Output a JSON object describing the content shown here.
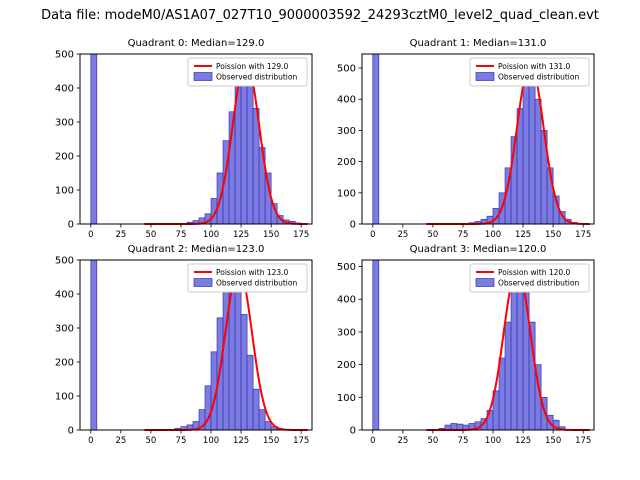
{
  "figure_title": "Data file: modeM0/AS1A07_027T10_9000003592_24293cztM0_level2_quad_clean.evt",
  "colors": {
    "bar_fill": "#7b7be0",
    "bar_edge": "#3535b8",
    "curve": "#ff0000",
    "axis": "#000000",
    "legend_border": "#cccccc",
    "background": "#ffffff"
  },
  "chart_data": [
    {
      "type": "bar",
      "title": "Quadrant 0: Median=129.0",
      "median": 129.0,
      "legend": [
        "Poission with 129.0",
        "Observed distribution"
      ],
      "xlabel": "",
      "ylabel": "",
      "xlim": [
        -9,
        184
      ],
      "ylim": [
        0,
        500
      ],
      "xticks": [
        0,
        25,
        50,
        75,
        100,
        125,
        150,
        175
      ],
      "yticks": [
        0,
        100,
        200,
        300,
        400,
        500
      ],
      "bin_start": 0,
      "bin_width": 5,
      "counts": [
        500,
        0,
        0,
        0,
        0,
        0,
        0,
        0,
        0,
        0,
        0,
        0,
        0,
        0,
        0,
        0,
        5,
        10,
        18,
        30,
        75,
        150,
        245,
        330,
        405,
        470,
        430,
        340,
        225,
        150,
        60,
        25,
        12,
        8,
        3,
        0
      ],
      "curve": {
        "center": 129.0,
        "sigma": 11,
        "amplitude": 480
      }
    },
    {
      "type": "bar",
      "title": "Quadrant 1: Median=131.0",
      "median": 131.0,
      "legend": [
        "Poission with 131.0",
        "Observed distribution"
      ],
      "xlabel": "",
      "ylabel": "",
      "xlim": [
        -9,
        184
      ],
      "ylim": [
        0,
        545
      ],
      "xticks": [
        0,
        25,
        50,
        75,
        100,
        125,
        150,
        175
      ],
      "yticks": [
        0,
        100,
        200,
        300,
        400,
        500
      ],
      "bin_start": 0,
      "bin_width": 5,
      "counts": [
        545,
        0,
        0,
        0,
        0,
        0,
        0,
        0,
        0,
        0,
        0,
        0,
        0,
        0,
        0,
        0,
        4,
        8,
        15,
        25,
        50,
        100,
        180,
        280,
        370,
        470,
        515,
        400,
        300,
        180,
        90,
        40,
        15,
        5,
        0,
        0
      ],
      "curve": {
        "center": 131.0,
        "sigma": 11,
        "amplitude": 515
      }
    },
    {
      "type": "bar",
      "title": "Quadrant 2: Median=123.0",
      "median": 123.0,
      "legend": [
        "Poission with 123.0",
        "Observed distribution"
      ],
      "xlabel": "",
      "ylabel": "",
      "xlim": [
        -9,
        184
      ],
      "ylim": [
        0,
        500
      ],
      "xticks": [
        0,
        25,
        50,
        75,
        100,
        125,
        150,
        175
      ],
      "yticks": [
        0,
        100,
        200,
        300,
        400,
        500
      ],
      "bin_start": 0,
      "bin_width": 5,
      "counts": [
        500,
        0,
        0,
        0,
        0,
        0,
        0,
        0,
        0,
        0,
        0,
        0,
        0,
        0,
        5,
        10,
        15,
        25,
        60,
        130,
        230,
        330,
        420,
        470,
        430,
        340,
        220,
        120,
        60,
        25,
        10,
        4,
        0,
        0,
        0,
        0
      ],
      "curve": {
        "center": 123.0,
        "sigma": 11,
        "amplitude": 475
      }
    },
    {
      "type": "bar",
      "title": "Quadrant 3: Median=120.0",
      "median": 120.0,
      "legend": [
        "Poission with 120.0",
        "Observed distribution"
      ],
      "xlabel": "",
      "ylabel": "",
      "xlim": [
        -9,
        184
      ],
      "ylim": [
        0,
        520
      ],
      "xticks": [
        0,
        25,
        50,
        75,
        100,
        125,
        150,
        175
      ],
      "yticks": [
        0,
        100,
        200,
        300,
        400,
        500
      ],
      "bin_start": 0,
      "bin_width": 5,
      "counts": [
        520,
        0,
        0,
        0,
        0,
        0,
        0,
        0,
        0,
        0,
        0,
        5,
        15,
        20,
        18,
        15,
        20,
        25,
        35,
        60,
        120,
        220,
        330,
        430,
        490,
        440,
        330,
        200,
        100,
        45,
        30,
        10,
        0,
        0,
        0,
        0
      ],
      "curve": {
        "center": 120.0,
        "sigma": 11,
        "amplitude": 495
      }
    }
  ]
}
